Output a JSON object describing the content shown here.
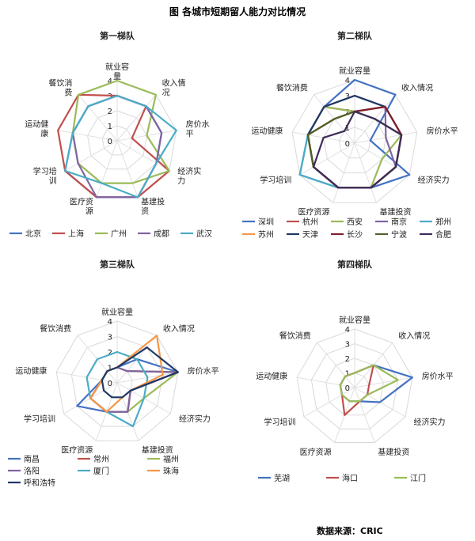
{
  "figure": {
    "title": "图  各城市短期留人能力对比情况",
    "source": "数据来源：CRIC"
  },
  "axes": [
    "就业容量",
    "收入情况",
    "房价水平",
    "经济实力",
    "基建投资",
    "医疗资源",
    "学习培训",
    "运动健康",
    "餐饮消费"
  ],
  "axis_label_lines": [
    [
      "就业容",
      "量"
    ],
    [
      "收入情",
      "况"
    ],
    [
      "房价水",
      "平"
    ],
    [
      "经济实",
      "力"
    ],
    [
      "基建投",
      "资"
    ],
    [
      "医疗资",
      "源"
    ],
    [
      "学习培",
      "训"
    ],
    [
      "运动健",
      "康"
    ],
    [
      "餐饮消",
      "费"
    ]
  ],
  "chart_data": [
    {
      "type": "radar",
      "title": "第一梯队",
      "range": [
        0,
        4
      ],
      "ticks": [
        "0",
        "1",
        "2",
        "3",
        "4"
      ],
      "series": [
        {
          "name": "北京",
          "color": "#4472c4",
          "values": [
            3,
            3,
            3,
            3,
            4,
            4,
            4,
            3,
            3
          ]
        },
        {
          "name": "上海",
          "color": "#c0504d",
          "values": [
            3,
            3,
            1,
            4,
            4,
            4,
            4,
            4,
            4
          ]
        },
        {
          "name": "广州",
          "color": "#9bbb59",
          "values": [
            4,
            4,
            2,
            4,
            3,
            3,
            3,
            3,
            4
          ]
        },
        {
          "name": "成都",
          "color": "#8064a2",
          "values": [
            3,
            3,
            3,
            3,
            4,
            4,
            3,
            3,
            3
          ]
        },
        {
          "name": "武汉",
          "color": "#4bacc6",
          "values": [
            3,
            3,
            4,
            3,
            4,
            3,
            4,
            3,
            3
          ]
        }
      ]
    },
    {
      "type": "radar",
      "title": "第二梯队",
      "range": [
        0,
        4
      ],
      "ticks": [
        "0",
        "1",
        "2",
        "3",
        "4"
      ],
      "series": [
        {
          "name": "深圳",
          "color": "#4472c4",
          "values": [
            4,
            4,
            1,
            4,
            3,
            3,
            4,
            3,
            3
          ]
        },
        {
          "name": "杭州",
          "color": "#c0504d",
          "values": [
            2,
            3,
            3,
            3,
            3,
            3,
            3,
            3,
            3
          ]
        },
        {
          "name": "西安",
          "color": "#9bbb59",
          "values": [
            2,
            2,
            3,
            2,
            3,
            3,
            3,
            3,
            3
          ]
        },
        {
          "name": "南京",
          "color": "#8064a2",
          "values": [
            3,
            3,
            2,
            3,
            3,
            3,
            3,
            3,
            3
          ]
        },
        {
          "name": "郑州",
          "color": "#4bacc6",
          "values": [
            2,
            2,
            3,
            3,
            3,
            3,
            4,
            3,
            2
          ]
        },
        {
          "name": "苏州",
          "color": "#f79646",
          "values": [
            2,
            3,
            3,
            3,
            3,
            3,
            3,
            3,
            2
          ]
        },
        {
          "name": "天津",
          "color": "#1f3864",
          "values": [
            3,
            3,
            3,
            3,
            3,
            3,
            3,
            3,
            3
          ]
        },
        {
          "name": "长沙",
          "color": "#7b1f2e",
          "values": [
            2,
            3,
            3,
            3,
            3,
            3,
            3,
            3,
            2
          ]
        },
        {
          "name": "宁波",
          "color": "#4f6228",
          "values": [
            2,
            2,
            3,
            3,
            3,
            3,
            3,
            3,
            2
          ]
        },
        {
          "name": "合肥",
          "color": "#3f2b5b",
          "values": [
            2,
            2,
            3,
            3,
            3,
            3,
            3,
            2,
            1
          ]
        }
      ]
    },
    {
      "type": "radar",
      "title": "第三梯队",
      "range": [
        0,
        4
      ],
      "ticks": [
        "0",
        "1",
        "2",
        "3",
        "4"
      ],
      "series": [
        {
          "name": "南昌",
          "color": "#4472c4",
          "values": [
            1,
            2,
            4,
            1,
            2,
            2,
            3,
            1,
            1
          ]
        },
        {
          "name": "常州",
          "color": "#c0504d",
          "values": [
            1,
            1,
            4,
            1,
            2,
            2,
            2,
            1,
            1
          ]
        },
        {
          "name": "福州",
          "color": "#9bbb59",
          "values": [
            1,
            1,
            4,
            2,
            2,
            2,
            2,
            1,
            1
          ]
        },
        {
          "name": "洛阳",
          "color": "#8064a2",
          "values": [
            1,
            1,
            4,
            1,
            2,
            2,
            2,
            1,
            1
          ]
        },
        {
          "name": "厦门",
          "color": "#4bacc6",
          "values": [
            2,
            2,
            2,
            2,
            3,
            2,
            2,
            2,
            2
          ]
        },
        {
          "name": "珠海",
          "color": "#f79646",
          "values": [
            1,
            4,
            3,
            1,
            1,
            2,
            2,
            1,
            1
          ]
        },
        {
          "name": "呼和浩特",
          "color": "#1f3864",
          "values": [
            1,
            3,
            4,
            1,
            1,
            1,
            1,
            1,
            1
          ]
        }
      ]
    },
    {
      "type": "radar",
      "title": "第四梯队",
      "range": [
        0,
        4
      ],
      "ticks": [
        "0",
        "1",
        "2",
        "3",
        "4"
      ],
      "series": [
        {
          "name": "芜湖",
          "color": "#4472c4",
          "values": [
            1,
            2,
            4,
            2,
            1,
            1,
            1,
            1,
            1
          ]
        },
        {
          "name": "海口",
          "color": "#c0504d",
          "values": [
            1,
            2,
            1,
            1,
            1,
            2,
            1,
            1,
            1
          ]
        },
        {
          "name": "江门",
          "color": "#9bbb59",
          "values": [
            1,
            2,
            3,
            1,
            1,
            1,
            1,
            1,
            1
          ]
        }
      ]
    }
  ]
}
